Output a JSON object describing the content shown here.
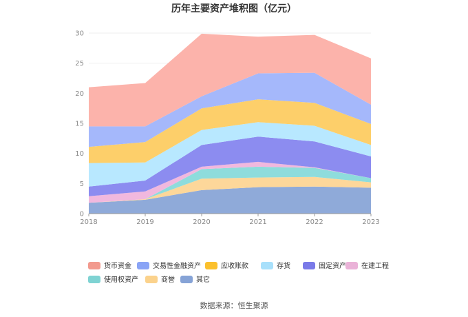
{
  "chart_data": {
    "type": "area",
    "stacked": true,
    "title": "历年主要资产堆积图（亿元）",
    "x": [
      "2018",
      "2019",
      "2020",
      "2021",
      "2022",
      "2023"
    ],
    "ylim": [
      0,
      30
    ],
    "yticks": [
      0,
      5,
      10,
      15,
      20,
      25,
      30
    ],
    "grid": true,
    "legend_position": "bottom",
    "series": [
      {
        "name": "其它",
        "color": "#8faad9",
        "values": [
          1.8,
          2.3,
          3.9,
          4.4,
          4.5,
          4.3
        ]
      },
      {
        "name": "商誉",
        "color": "#fdd79a",
        "values": [
          0.0,
          0.1,
          1.9,
          1.6,
          1.6,
          0.9
        ]
      },
      {
        "name": "使用权资产",
        "color": "#8edcdc",
        "values": [
          0.0,
          0.0,
          1.6,
          1.8,
          1.5,
          0.7
        ]
      },
      {
        "name": "在建工程",
        "color": "#f1b8de",
        "values": [
          1.1,
          1.3,
          0.4,
          0.8,
          0.1,
          0.0
        ]
      },
      {
        "name": "固定资产",
        "color": "#8c8cf0",
        "values": [
          1.6,
          1.8,
          3.6,
          4.2,
          4.3,
          3.6
        ]
      },
      {
        "name": "存货",
        "color": "#b8e8ff",
        "values": [
          3.9,
          3.0,
          2.5,
          2.4,
          2.6,
          1.9
        ]
      },
      {
        "name": "应收账款",
        "color": "#fdcf6a",
        "values": [
          2.7,
          3.4,
          3.6,
          3.8,
          3.8,
          3.5
        ]
      },
      {
        "name": "交易性金融资产",
        "color": "#a5b8fb",
        "values": [
          3.4,
          2.6,
          2.0,
          4.3,
          5.0,
          3.2
        ]
      },
      {
        "name": "货币资金",
        "color": "#fcb3ab",
        "values": [
          6.5,
          7.2,
          10.4,
          6.1,
          6.3,
          7.7
        ]
      }
    ],
    "legend": [
      {
        "label": "货币资金",
        "color": "#f29a8e"
      },
      {
        "label": "交易性金融资产",
        "color": "#8aa4f6"
      },
      {
        "label": "应收账款",
        "color": "#fbc02d"
      },
      {
        "label": "存货",
        "color": "#a8e0fb"
      },
      {
        "label": "固定资产",
        "color": "#7a7ae8"
      },
      {
        "label": "在建工程",
        "color": "#eab2d8"
      },
      {
        "label": "使用权资产",
        "color": "#7fd3d3"
      },
      {
        "label": "商誉",
        "color": "#fbd28c"
      },
      {
        "label": "其它",
        "color": "#86a3d6"
      }
    ]
  },
  "source": "数据来源：恒生聚源"
}
